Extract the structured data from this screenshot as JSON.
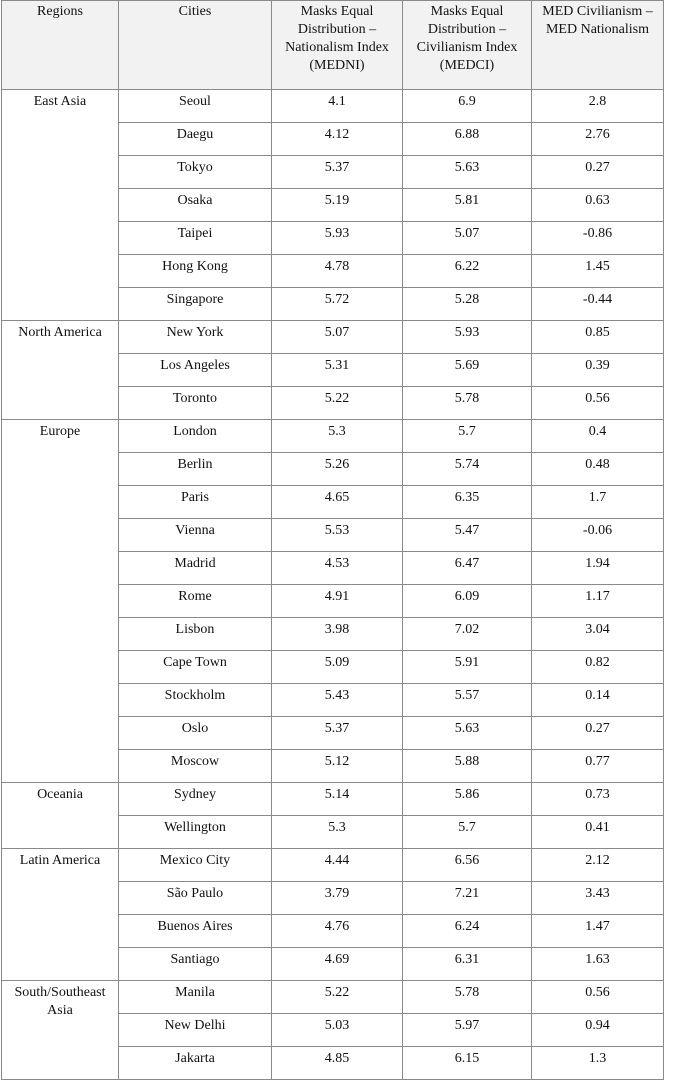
{
  "table": {
    "header": [
      "Regions",
      "Cities",
      "Masks Equal Distribution – Nationalism Index (MEDNI)",
      "Masks Equal Distribution – Civilianism Index (MEDCI)",
      "MED Civilianism – MED Nationalism"
    ],
    "groups": [
      {
        "region": "East Asia",
        "rows": [
          [
            "Seoul",
            4.1,
            6.9,
            2.8
          ],
          [
            "Daegu",
            4.12,
            6.88,
            2.76
          ],
          [
            "Tokyo",
            5.37,
            5.63,
            0.27
          ],
          [
            "Osaka",
            5.19,
            5.81,
            0.63
          ],
          [
            "Taipei",
            5.93,
            5.07,
            -0.86
          ],
          [
            "Hong Kong",
            4.78,
            6.22,
            1.45
          ],
          [
            "Singapore",
            5.72,
            5.28,
            -0.44
          ]
        ]
      },
      {
        "region": "North America",
        "rows": [
          [
            "New York",
            5.07,
            5.93,
            0.85
          ],
          [
            "Los Angeles",
            5.31,
            5.69,
            0.39
          ],
          [
            "Toronto",
            5.22,
            5.78,
            0.56
          ]
        ]
      },
      {
        "region": "Europe",
        "rows": [
          [
            "London",
            5.3,
            5.7,
            0.4
          ],
          [
            "Berlin",
            5.26,
            5.74,
            0.48
          ],
          [
            "Paris",
            4.65,
            6.35,
            1.7
          ],
          [
            "Vienna",
            5.53,
            5.47,
            -0.06
          ],
          [
            "Madrid",
            4.53,
            6.47,
            1.94
          ],
          [
            "Rome",
            4.91,
            6.09,
            1.17
          ],
          [
            "Lisbon",
            3.98,
            7.02,
            3.04
          ],
          [
            "Cape Town",
            5.09,
            5.91,
            0.82
          ],
          [
            "Stockholm",
            5.43,
            5.57,
            0.14
          ],
          [
            "Oslo",
            5.37,
            5.63,
            0.27
          ],
          [
            "Moscow",
            5.12,
            5.88,
            0.77
          ]
        ]
      },
      {
        "region": "Oceania",
        "rows": [
          [
            "Sydney",
            5.14,
            5.86,
            0.73
          ],
          [
            "Wellington",
            5.3,
            5.7,
            0.41
          ]
        ]
      },
      {
        "region": "Latin America",
        "rows": [
          [
            "Mexico City",
            4.44,
            6.56,
            2.12
          ],
          [
            "São Paulo",
            3.79,
            7.21,
            3.43
          ],
          [
            "Buenos Aires",
            4.76,
            6.24,
            1.47
          ],
          [
            "Santiago",
            4.69,
            6.31,
            1.63
          ]
        ]
      },
      {
        "region": "South/Southeast Asia",
        "rows": [
          [
            "Manila",
            5.22,
            5.78,
            0.56
          ],
          [
            "New Delhi",
            5.03,
            5.97,
            0.94
          ],
          [
            "Jakarta",
            4.85,
            6.15,
            1.3
          ]
        ]
      }
    ]
  }
}
